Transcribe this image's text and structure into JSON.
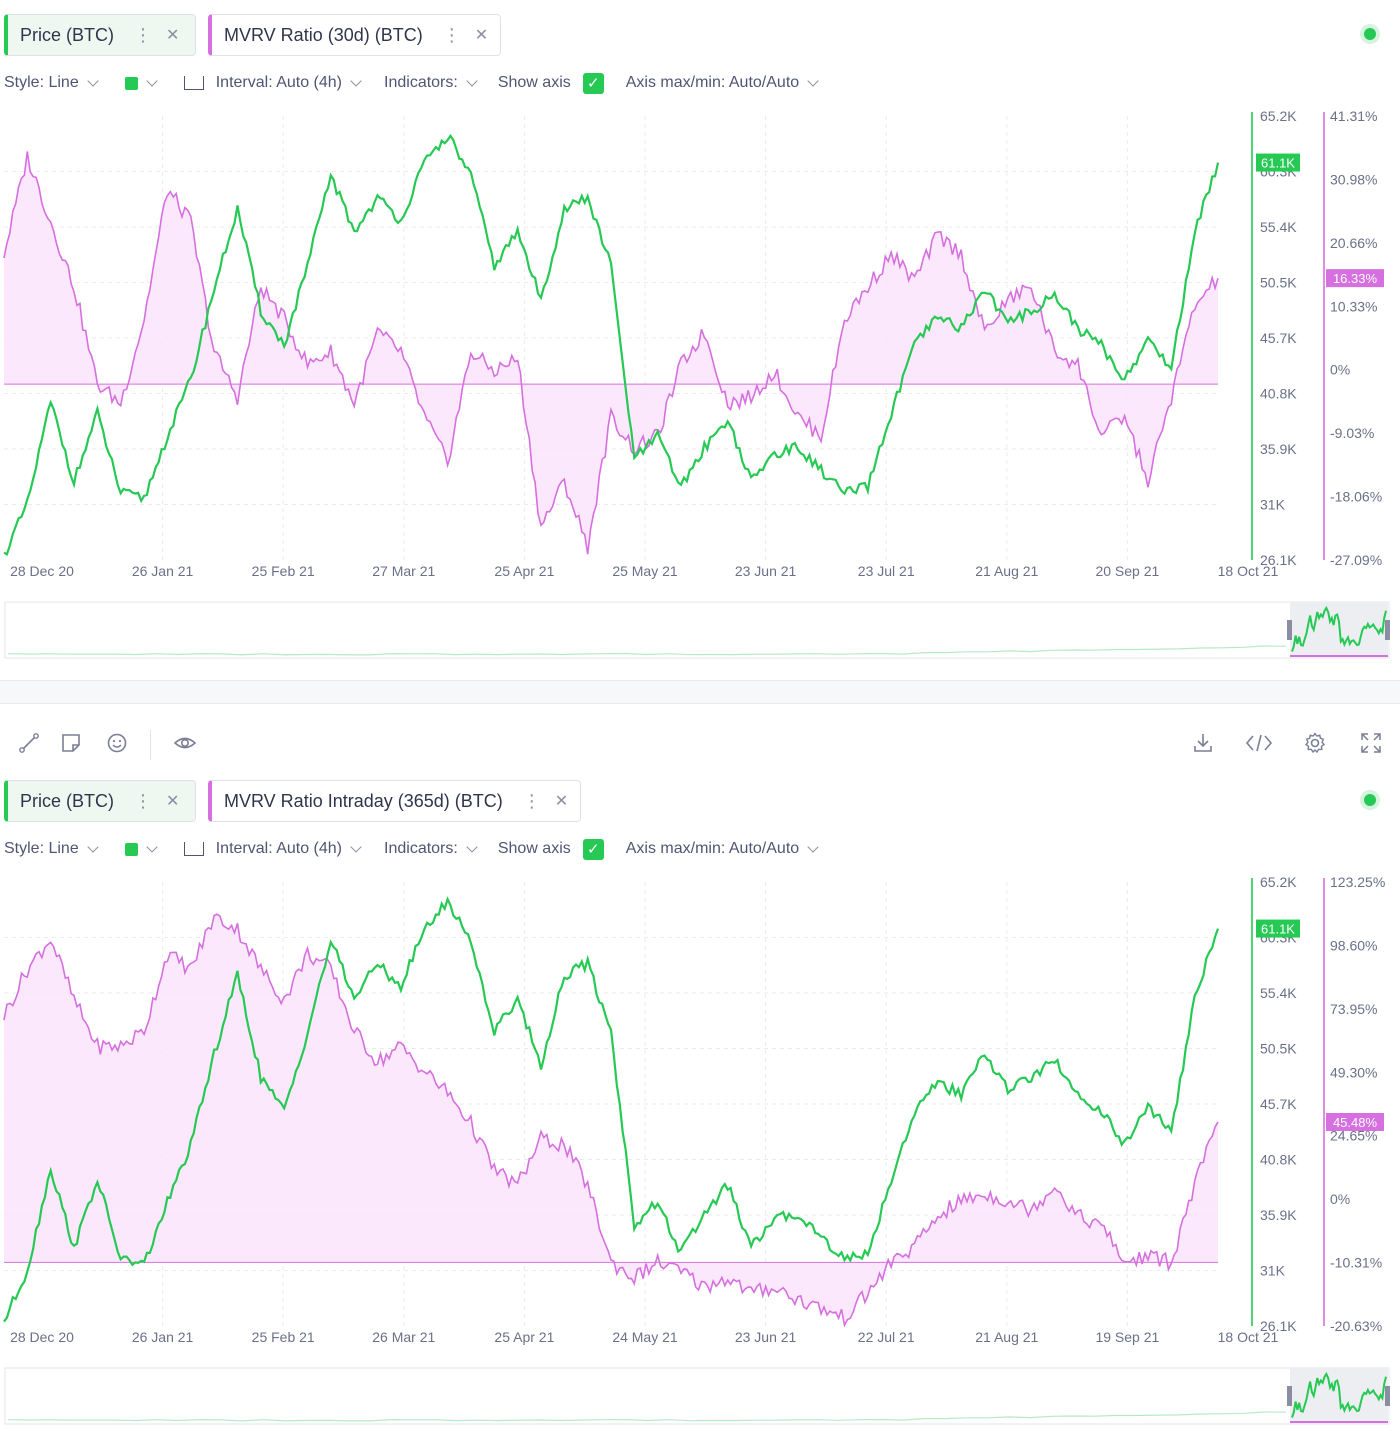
{
  "colors": {
    "price": "#26c953",
    "mvrv": "#d66fdf",
    "mvrv_fill": "#fbe4fc",
    "grid": "#e9ebef",
    "text": "#505573"
  },
  "toolbar": {
    "icons": [
      "line-draw-icon",
      "sticky-note-icon",
      "emoji-icon",
      "eye-icon",
      "download-icon",
      "embed-code-icon",
      "settings-icon",
      "fullscreen-icon"
    ]
  },
  "panels": [
    {
      "metrics": [
        {
          "label": "Price (BTC)"
        },
        {
          "label": "MVRV Ratio (30d) (BTC)"
        }
      ],
      "options": {
        "style": "Style: Line",
        "interval": "Interval: Auto (4h)",
        "indicators": "Indicators:",
        "show_axis": "Show axis",
        "axis_range": "Axis max/min: Auto/Auto"
      }
    },
    {
      "metrics": [
        {
          "label": "Price (BTC)"
        },
        {
          "label": "MVRV Ratio Intraday (365d) (BTC)"
        }
      ],
      "options": {
        "style": "Style: Line",
        "interval": "Interval: Auto (4h)",
        "indicators": "Indicators:",
        "show_axis": "Show axis",
        "axis_range": "Axis max/min: Auto/Auto"
      }
    }
  ],
  "chart_data": [
    {
      "type": "line",
      "x_labels": [
        "28 Dec 20",
        "26 Jan 21",
        "25 Feb 21",
        "27 Mar 21",
        "25 Apr 21",
        "25 May 21",
        "23 Jun 21",
        "23 Jul 21",
        "21 Aug 21",
        "20 Sep 21",
        "18 Oct 21"
      ],
      "price_axis": {
        "ticks": [
          "65.2K",
          "60.3K",
          "55.4K",
          "50.5K",
          "45.7K",
          "40.8K",
          "35.9K",
          "31K",
          "26.1K"
        ],
        "range": [
          26100,
          65200
        ],
        "last_label": "61.1K"
      },
      "mvrv_axis": {
        "ticks": [
          "41.31%",
          "30.98%",
          "20.66%",
          "10.33%",
          "0%",
          "-9.03%",
          "-18.06%",
          "-27.09%"
        ],
        "range": [
          -27.09,
          41.31
        ],
        "last_label": "16.33%"
      },
      "series": [
        {
          "name": "Price (BTC)",
          "axis": "price",
          "values": [
            26500,
            31000,
            40000,
            33000,
            39000,
            32000,
            31500,
            37000,
            42000,
            50000,
            57000,
            48000,
            45000,
            52000,
            60000,
            55000,
            58000,
            56000,
            61000,
            63500,
            60000,
            52000,
            55000,
            49000,
            57000,
            58000,
            52000,
            35000,
            37000,
            32500,
            36000,
            38500,
            33000,
            35500,
            36000,
            34000,
            32000,
            32500,
            39000,
            45000,
            47500,
            46500,
            50000,
            47000,
            48000,
            49500,
            46500,
            45000,
            42000,
            45500,
            43000,
            55000,
            61100
          ]
        },
        {
          "name": "MVRV Ratio (30d) (BTC)",
          "axis": "mvrv",
          "values": [
            20,
            35,
            25,
            15,
            0,
            -3,
            10,
            30,
            25,
            5,
            -2,
            15,
            10,
            3,
            5,
            -3,
            8,
            5,
            -5,
            -12,
            5,
            2,
            4,
            -22,
            -15,
            -25,
            -5,
            -10,
            -8,
            3,
            8,
            -3,
            -2,
            2,
            -5,
            -8,
            10,
            15,
            20,
            16,
            23,
            20,
            8,
            13,
            15,
            5,
            3,
            -8,
            -5,
            -15,
            -2,
            12,
            16.33
          ]
        }
      ]
    },
    {
      "type": "line",
      "x_labels": [
        "28 Dec 20",
        "26 Jan 21",
        "25 Feb 21",
        "26 Mar 21",
        "25 Apr 21",
        "24 May 21",
        "23 Jun 21",
        "22 Jul 21",
        "21 Aug 21",
        "19 Sep 21",
        "18 Oct 21"
      ],
      "price_axis": {
        "ticks": [
          "65.2K",
          "60.3K",
          "55.4K",
          "50.5K",
          "45.7K",
          "40.8K",
          "35.9K",
          "31K",
          "26.1K"
        ],
        "range": [
          26100,
          65200
        ],
        "last_label": "61.1K"
      },
      "mvrv_axis": {
        "ticks": [
          "123.25%",
          "98.60%",
          "73.95%",
          "49.30%",
          "24.65%",
          "0%",
          "-10.31%",
          "-20.63%"
        ],
        "range": [
          -20.63,
          123.25
        ],
        "last_label": "45.48%"
      },
      "series": [
        {
          "name": "Price (BTC)",
          "axis": "price",
          "values": [
            26500,
            31000,
            40000,
            33000,
            39000,
            32000,
            31500,
            37000,
            42000,
            50000,
            57000,
            48000,
            45000,
            52000,
            60000,
            55000,
            58000,
            56000,
            61000,
            63500,
            60000,
            52000,
            55000,
            49000,
            57000,
            58000,
            52000,
            35000,
            37000,
            32500,
            36000,
            38500,
            33000,
            35500,
            36000,
            34000,
            32000,
            32500,
            39000,
            45000,
            47500,
            46500,
            50000,
            47000,
            48000,
            49500,
            46500,
            45000,
            42000,
            45500,
            43000,
            55000,
            61100
          ]
        },
        {
          "name": "MVRV Ratio Intraday (365d) (BTC)",
          "axis": "mvrv",
          "values": [
            80,
            95,
            105,
            85,
            70,
            70,
            75,
            100,
            95,
            112,
            108,
            95,
            85,
            100,
            95,
            75,
            65,
            70,
            62,
            55,
            45,
            30,
            25,
            40,
            38,
            25,
            0,
            -5,
            0,
            -3,
            -8,
            -5,
            -10,
            -8,
            -12,
            -15,
            -18,
            -10,
            0,
            5,
            15,
            20,
            22,
            20,
            17,
            25,
            15,
            12,
            0,
            2,
            0,
            25,
            45.48
          ]
        }
      ]
    }
  ]
}
